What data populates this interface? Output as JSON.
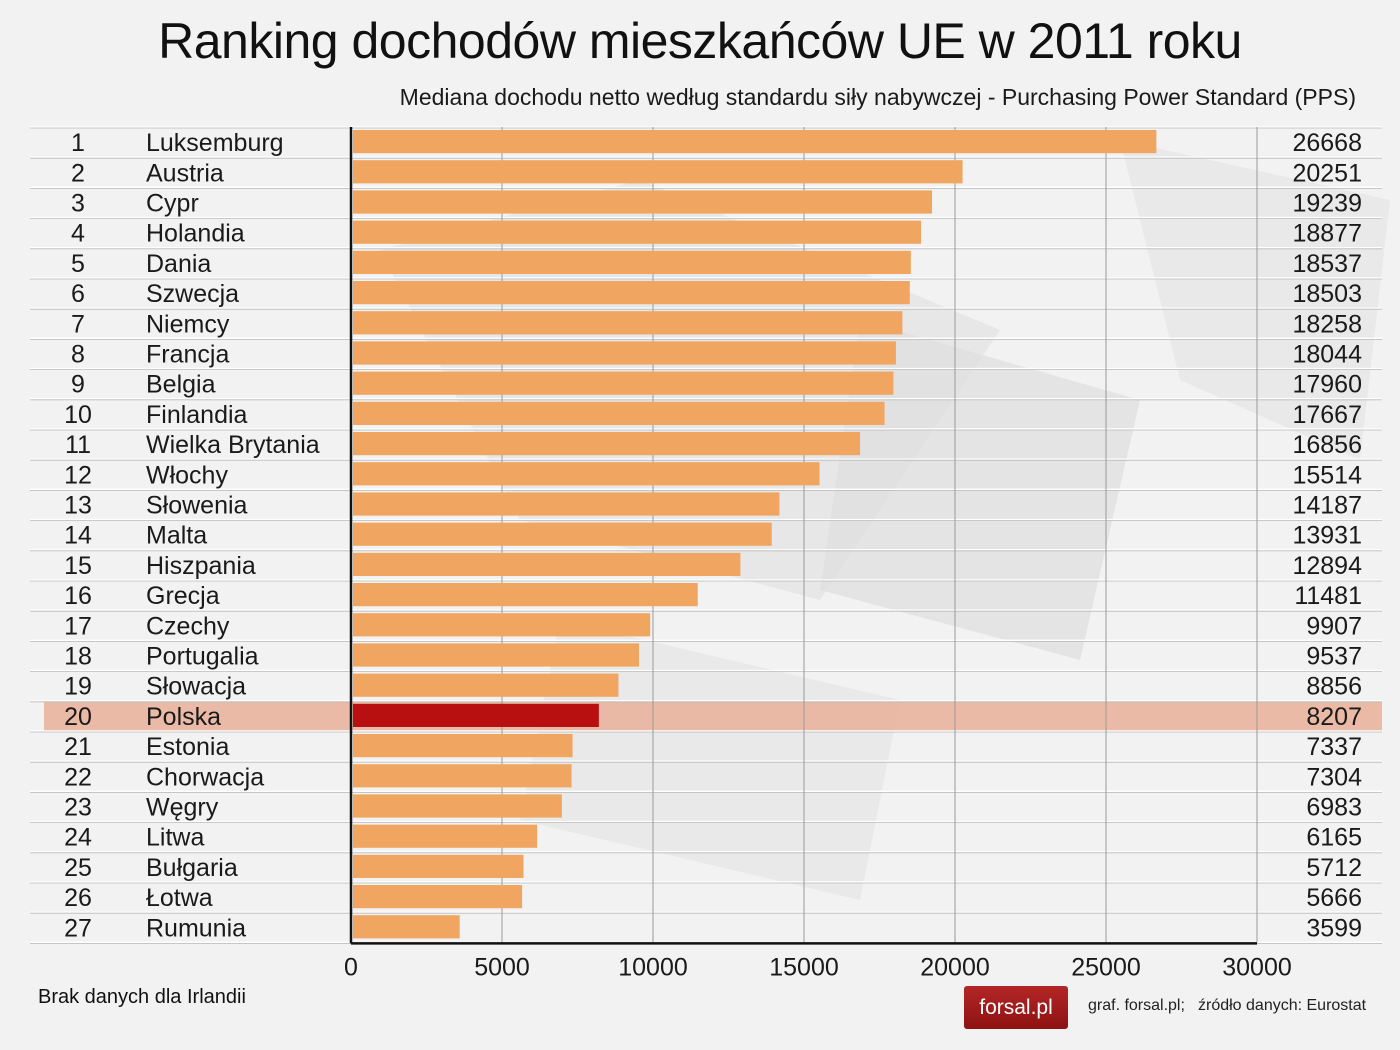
{
  "header": {
    "title": "Ranking dochodów mieszkańców UE w 2011 roku",
    "subtitle": "Mediana dochodu netto według standardu siły nabywczej - Purchasing Power Standard (PPS)"
  },
  "footer": {
    "note": "Brak danych dla Irlandii",
    "logo_text": "forsal.pl",
    "credit_graphic": "graf. forsal.pl;",
    "credit_source": "źródło danych: Eurostat"
  },
  "colors": {
    "bar": "#f0a660",
    "highlight_bar": "#b81010",
    "highlight_row": "#eab09a",
    "axis": "#111111",
    "grid": "#9a9a9a"
  },
  "chart_data": {
    "type": "bar",
    "orientation": "horizontal",
    "title": "Ranking dochodów mieszkańców UE w 2011 roku",
    "subtitle": "Mediana dochodu netto według standardu siły nabywczej - Purchasing Power Standard (PPS)",
    "xlim": [
      0,
      30000
    ],
    "xticks": [
      0,
      5000,
      10000,
      15000,
      20000,
      25000,
      30000
    ],
    "grid": true,
    "highlight": "Polska",
    "rows": [
      {
        "rank": "1",
        "country": "Luksemburg",
        "value": 26668
      },
      {
        "rank": "2",
        "country": "Austria",
        "value": 20251
      },
      {
        "rank": "3",
        "country": "Cypr",
        "value": 19239
      },
      {
        "rank": "4",
        "country": "Holandia",
        "value": 18877
      },
      {
        "rank": "5",
        "country": "Dania",
        "value": 18537
      },
      {
        "rank": "6",
        "country": "Szwecja",
        "value": 18503
      },
      {
        "rank": "7",
        "country": "Niemcy",
        "value": 18258
      },
      {
        "rank": "8",
        "country": "Francja",
        "value": 18044
      },
      {
        "rank": "9",
        "country": "Belgia",
        "value": 17960
      },
      {
        "rank": "10",
        "country": "Finlandia",
        "value": 17667
      },
      {
        "rank": "11",
        "country": "Wielka Brytania",
        "value": 16856
      },
      {
        "rank": "12",
        "country": "Włochy",
        "value": 15514
      },
      {
        "rank": "13",
        "country": "Słowenia",
        "value": 14187
      },
      {
        "rank": "14",
        "country": "Malta",
        "value": 13931
      },
      {
        "rank": "15",
        "country": "Hiszpania",
        "value": 12894
      },
      {
        "rank": "16",
        "country": "Grecja",
        "value": 11481
      },
      {
        "rank": "17",
        "country": "Czechy",
        "value": 9907
      },
      {
        "rank": "18",
        "country": "Portugalia",
        "value": 9537
      },
      {
        "rank": "19",
        "country": "Słowacja",
        "value": 8856
      },
      {
        "rank": "20",
        "country": "Polska",
        "value": 8207
      },
      {
        "rank": "21",
        "country": "Estonia",
        "value": 7337
      },
      {
        "rank": "22",
        "country": "Chorwacja",
        "value": 7304
      },
      {
        "rank": "23",
        "country": "Węgry",
        "value": 6983
      },
      {
        "rank": "24",
        "country": "Litwa",
        "value": 6165
      },
      {
        "rank": "25",
        "country": "Bułgaria",
        "value": 5712
      },
      {
        "rank": "26",
        "country": "Łotwa",
        "value": 5666
      },
      {
        "rank": "27",
        "country": "Rumunia",
        "value": 3599
      }
    ]
  }
}
